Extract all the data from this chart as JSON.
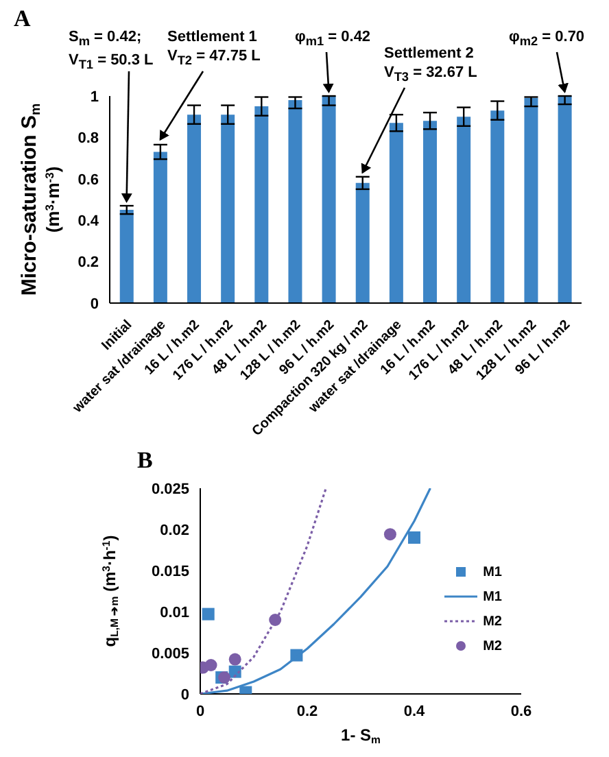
{
  "chart_data": [
    {
      "type": "bar",
      "title": "A",
      "ylabel": "Micro-saturation S$_{m}$\n(m$^{3}$·m$^{-3}$)",
      "categories": [
        "Initial",
        "water sat /drainage",
        "16 L / h.m2",
        "176 L / h.m2",
        "48 L / h.m2",
        "128 L / h.m2",
        "96 L / h.m2",
        "Compaction 320 kg / m2",
        "water sat /drainage",
        "16 L / h.m2",
        "176 L / h.m2",
        "48 L / h.m2",
        "128 L / h.m2",
        "96 L / h.m2"
      ],
      "values": [
        0.45,
        0.73,
        0.91,
        0.91,
        0.95,
        0.98,
        1.0,
        0.58,
        0.87,
        0.88,
        0.9,
        0.93,
        0.99,
        1.0
      ],
      "errors": [
        0.02,
        0.035,
        0.045,
        0.045,
        0.045,
        [
          0.94,
          0.995
        ],
        [
          0.955,
          1
        ],
        0.03,
        0.04,
        0.04,
        0.045,
        0.045,
        [
          0.95,
          0.995
        ],
        [
          0.96,
          1
        ]
      ],
      "color": "#3d85c6",
      "ylim": [
        0,
        1
      ],
      "yticks": [
        0,
        0.2,
        0.4,
        0.6,
        0.8,
        1
      ],
      "grid": false,
      "annotations": [
        {
          "text": "S$_{m}$ = 0.42;\nV$_{T1}$ = 50.3 L",
          "x": "Initial",
          "y": 0.47
        },
        {
          "text": "Settlement 1\nV$_{T2}$ = 47.75 L",
          "x": "water sat /drainage",
          "y": 0.77
        },
        {
          "text": "φ$_{m1}$ = 0.42",
          "x": "96 L / h.m2",
          "y": 1
        },
        {
          "text": "Settlement 2\nV$_{T3}$ = 32.67 L",
          "x": "Compaction 320 kg / m2",
          "y": 0.61
        },
        "φ$_{m2}$ = 0.70"
      ]
    },
    {
      "type": "scatter",
      "title": "B",
      "xlabel": "1- S$_{m}$",
      "ylabel": "q$_{L,M ➔m}$  (m$^{3}$·h$^{-1}$)",
      "xlim": [
        0,
        0.6
      ],
      "xticks": [
        0,
        0.2,
        0.4,
        0.6
      ],
      "ylim": [
        0,
        0.025
      ],
      "yticks": [
        0,
        0.005,
        0.01,
        0.015,
        0.02,
        0.025
      ],
      "grid": false,
      "legend": "right",
      "series": [
        {
          "name": "M1",
          "type": "scatter",
          "marker": "square",
          "color": "#3d85c6",
          "x": [
            0.015,
            0.04,
            0.065,
            0.085,
            0.18,
            0.4
          ],
          "values": [
            0.0097,
            0.002,
            0.0027,
            0.0002,
            0.0047,
            0.019
          ]
        },
        {
          "name": "M1",
          "type": "line",
          "marker": "none",
          "line_style": "solid",
          "color": "#3d85c6",
          "x": [
            0,
            0.05,
            0.1,
            0.15,
            0.2,
            0.25,
            0.3,
            0.35,
            0.4,
            0.43
          ],
          "values": [
            0,
            0.0004,
            0.0015,
            0.003,
            0.0055,
            0.0085,
            0.0118,
            0.0155,
            0.021,
            0.025
          ]
        },
        {
          "name": "M2",
          "type": "line",
          "marker": "none",
          "line_style": "dotted",
          "color": "#7b5ea7",
          "x": [
            0,
            0.05,
            0.1,
            0.15,
            0.2,
            0.235
          ],
          "values": [
            0,
            0.0012,
            0.0045,
            0.01,
            0.018,
            0.025
          ]
        },
        {
          "name": "M2",
          "type": "scatter",
          "marker": "circle",
          "color": "#7b5ea7",
          "x": [
            0.005,
            0.02,
            0.045,
            0.065,
            0.14,
            0.355
          ],
          "values": [
            0.0032,
            0.0035,
            0.002,
            0.0042,
            0.009,
            0.0194
          ]
        }
      ]
    }
  ]
}
